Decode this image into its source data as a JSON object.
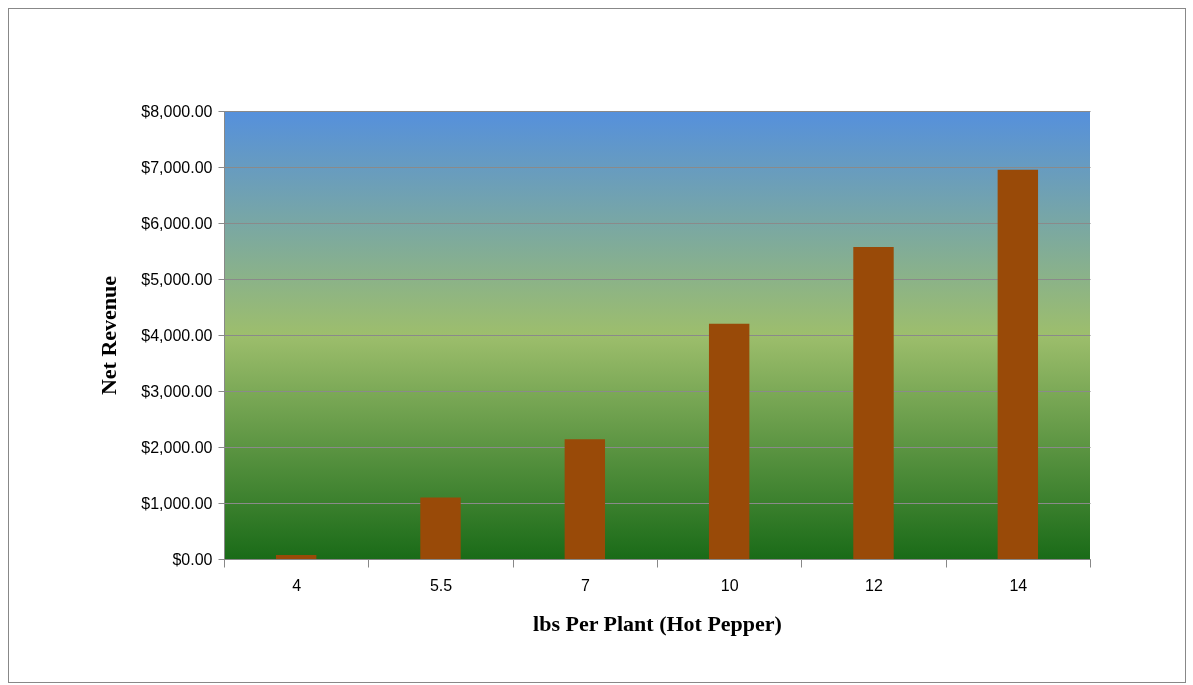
{
  "chart_data": {
    "type": "bar",
    "xlabel": "lbs  Per Plant (Hot Pepper)",
    "ylabel": "Net Revenue",
    "categories": [
      "4",
      "5.5",
      "7",
      "10",
      "12",
      "14"
    ],
    "values": [
      70,
      1100,
      2140,
      4200,
      5570,
      6950
    ],
    "color": "#994a08",
    "ylim": [
      0,
      8000
    ],
    "yticks": [
      {
        "value": 0,
        "label": "$0.00"
      },
      {
        "value": 1000,
        "label": "$1,000.00"
      },
      {
        "value": 2000,
        "label": "$2,000.00"
      },
      {
        "value": 3000,
        "label": "$3,000.00"
      },
      {
        "value": 4000,
        "label": "$4,000.00"
      },
      {
        "value": 5000,
        "label": "$5,000.00"
      },
      {
        "value": 6000,
        "label": "$6,000.00"
      },
      {
        "value": 7000,
        "label": "$7,000.00"
      },
      {
        "value": 8000,
        "label": "$8,000.00"
      }
    ],
    "grid": "y"
  }
}
